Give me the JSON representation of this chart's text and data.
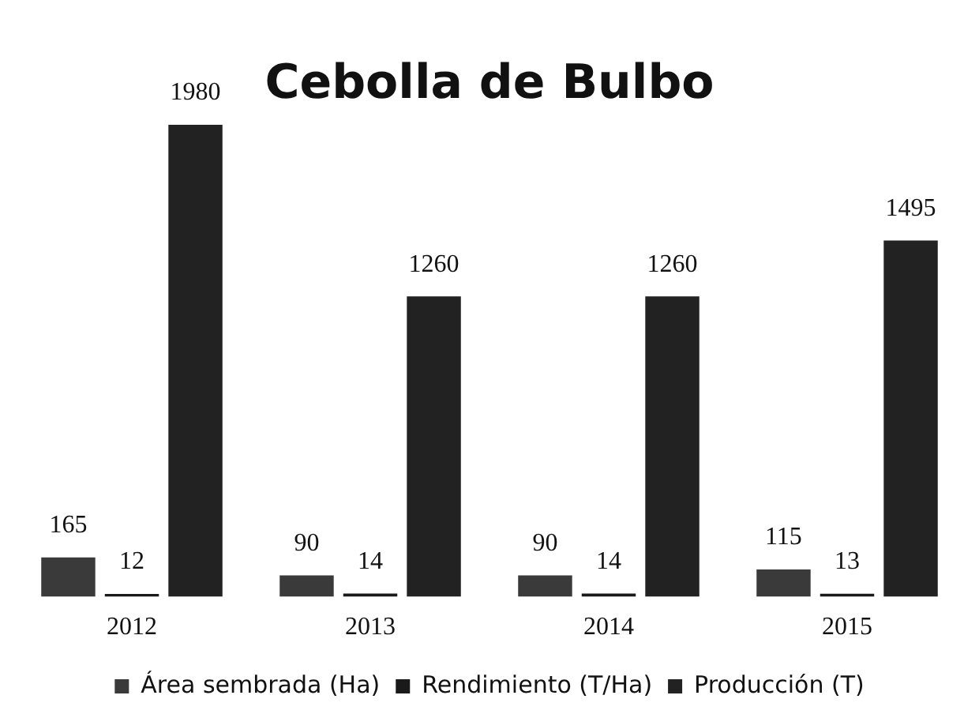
{
  "chart_data": {
    "type": "bar",
    "title": "Cebolla de Bulbo",
    "categories": [
      "2012",
      "2013",
      "2014",
      "2015"
    ],
    "series": [
      {
        "name": "Área sembrada (Ha)",
        "color": "#3a3a3a",
        "values": [
          165,
          90,
          90,
          115
        ]
      },
      {
        "name": "Rendimiento (T/Ha)",
        "color": "#1a1a1a",
        "values": [
          12,
          14,
          14,
          13
        ]
      },
      {
        "name": "Producción (T)",
        "color": "#222222",
        "values": [
          1980,
          1260,
          1260,
          1495
        ]
      }
    ],
    "data_labels": true,
    "grid": false,
    "legend": "bottom",
    "tick_labels": "x"
  }
}
